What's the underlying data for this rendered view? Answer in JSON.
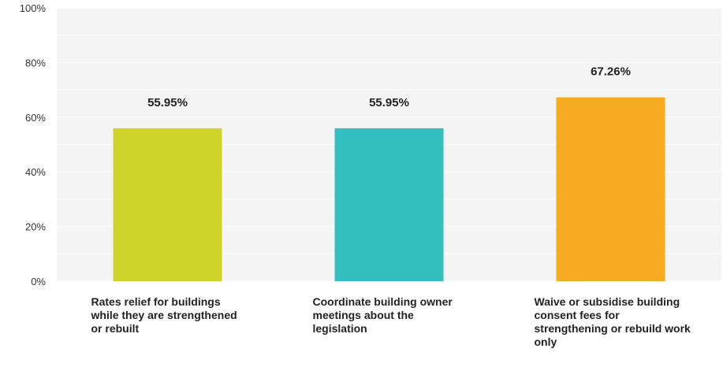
{
  "chart_data": {
    "type": "bar",
    "categories": [
      "Rates relief for buildings while they are strengthened or rebuilt",
      "Coordinate building owner meetings about the legislation",
      "Waive or subsidise building consent fees for strengthening or rebuild work only"
    ],
    "values": [
      55.95,
      55.95,
      67.26
    ],
    "data_labels": [
      "55.95%",
      "55.95%",
      "67.26%"
    ],
    "y_ticks": [
      "0%",
      "20%",
      "40%",
      "60%",
      "80%",
      "100%"
    ],
    "ylim": [
      0,
      100
    ],
    "title": "",
    "xlabel": "",
    "ylabel": "",
    "grid": true,
    "colors": [
      "#cfd42a",
      "#33bec1",
      "#f5ac21"
    ],
    "background": "#f4f4f4",
    "gridline_color": "#ffffff"
  }
}
